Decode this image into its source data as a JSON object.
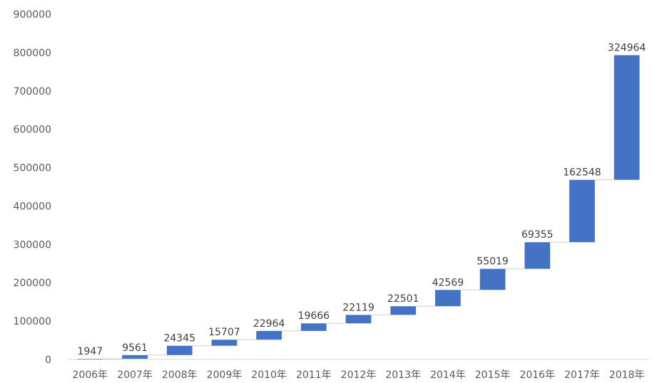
{
  "chart_data": {
    "type": "bar",
    "subtype": "waterfall",
    "title": "",
    "xlabel": "",
    "ylabel": "",
    "categories": [
      "2006年",
      "2007年",
      "2008年",
      "2009年",
      "2010年",
      "2011年",
      "2012年",
      "2013年",
      "2014年",
      "2015年",
      "2016年",
      "2017年",
      "2018年"
    ],
    "values": [
      1947,
      9561,
      24345,
      15707,
      22964,
      19666,
      22119,
      22501,
      42569,
      55019,
      69355,
      162548,
      324964
    ],
    "ylim": [
      0,
      900000
    ],
    "yticks": [
      "0",
      "100000",
      "200000",
      "300000",
      "400000",
      "500000",
      "600000",
      "700000",
      "800000",
      "900000"
    ],
    "grid": false,
    "legend": "none",
    "bar_color": "#4472c4"
  }
}
